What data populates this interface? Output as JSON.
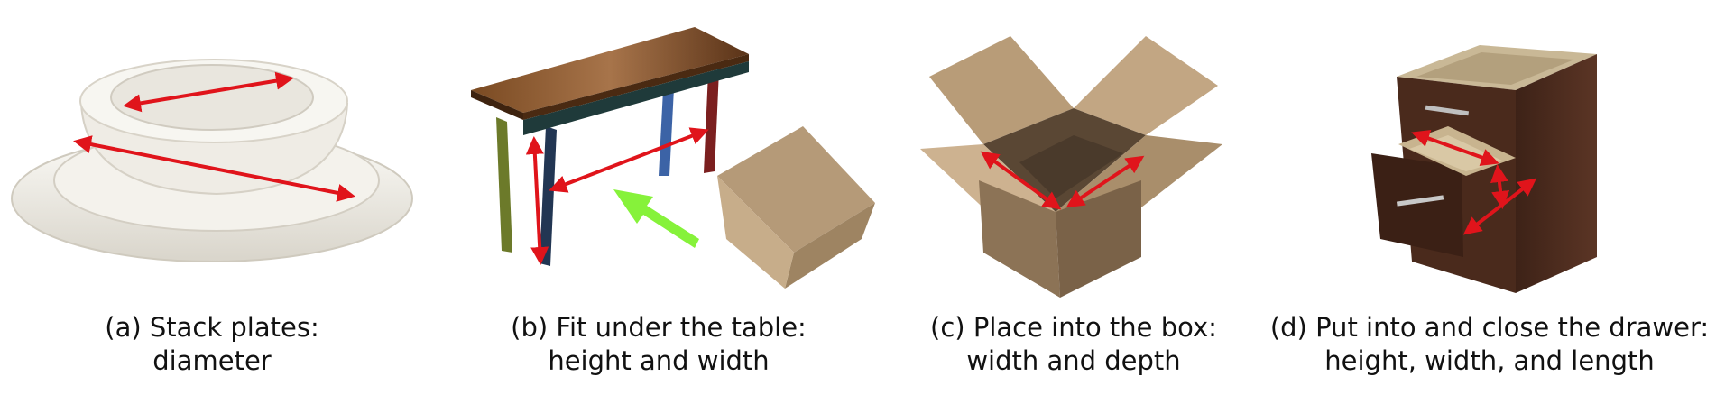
{
  "figure": {
    "panels": [
      {
        "id": "a",
        "caption_line1": "(a) Stack plates:",
        "caption_line2": "diameter",
        "object_icon": "stacked-plates-and-bowl"
      },
      {
        "id": "b",
        "caption_line1": "(b) Fit under the table:",
        "caption_line2": "height and width",
        "object_icon": "side-table-with-box"
      },
      {
        "id": "c",
        "caption_line1": "(c) Place into the box:",
        "caption_line2": "width and depth",
        "object_icon": "open-cardboard-box"
      },
      {
        "id": "d",
        "caption_line1": "(d) Put into and close the drawer:",
        "caption_line2": "height, width, and length",
        "object_icon": "drawer-cabinet"
      }
    ],
    "colors": {
      "arrow": "#e0141b",
      "motion_arrow": "#86f23a",
      "plate": "#efece4",
      "table_top": "#6b3f1e",
      "cardboard": "#b59a78",
      "cabinet": "#4a2a1c"
    }
  }
}
